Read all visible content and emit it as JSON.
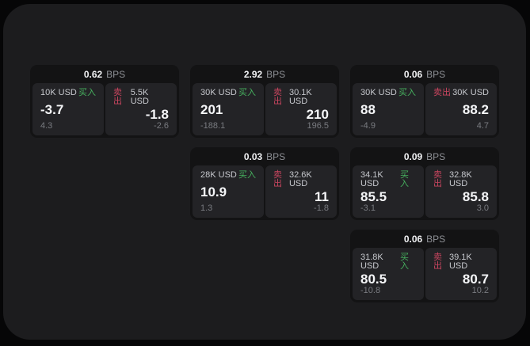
{
  "theme": {
    "outer_bg": "#060607",
    "page_bg": "#1c1c1e",
    "card_bg": "#131314",
    "panel_bg": "#232326",
    "buy_color": "#46b05e",
    "sell_color": "#c9455f",
    "value_color": "#f5f6f8",
    "muted_color": "#797b80"
  },
  "labels": {
    "bps_unit": "BPS",
    "buy": "买入",
    "sell": "卖出"
  },
  "cards": [
    {
      "row": 1,
      "col": 1,
      "bps": "0.62",
      "buy": {
        "amount": "10K USD",
        "value": "-3.7",
        "change": "4.3"
      },
      "sell": {
        "amount": "5.5K USD",
        "value": "-1.8",
        "change": "-2.6"
      }
    },
    {
      "row": 1,
      "col": 2,
      "bps": "2.92",
      "buy": {
        "amount": "30K USD",
        "value": "201",
        "change": "-188.1"
      },
      "sell": {
        "amount": "30.1K USD",
        "value": "210",
        "change": "196.5"
      }
    },
    {
      "row": 1,
      "col": 3,
      "bps": "0.06",
      "buy": {
        "amount": "30K USD",
        "value": "88",
        "change": "-4.9"
      },
      "sell": {
        "amount": "30K USD",
        "value": "88.2",
        "change": "4.7"
      }
    },
    {
      "row": 2,
      "col": 2,
      "bps": "0.03",
      "buy": {
        "amount": "28K USD",
        "value": "10.9",
        "change": "1.3"
      },
      "sell": {
        "amount": "32.6K USD",
        "value": "11",
        "change": "-1.8"
      }
    },
    {
      "row": 2,
      "col": 3,
      "bps": "0.09",
      "buy": {
        "amount": "34.1K USD",
        "value": "85.5",
        "change": "-3.1"
      },
      "sell": {
        "amount": "32.8K USD",
        "value": "85.8",
        "change": "3.0"
      }
    },
    {
      "row": 3,
      "col": 3,
      "bps": "0.06",
      "buy": {
        "amount": "31.8K USD",
        "value": "80.5",
        "change": "-10.8"
      },
      "sell": {
        "amount": "39.1K USD",
        "value": "80.7",
        "change": "10.2"
      }
    }
  ]
}
